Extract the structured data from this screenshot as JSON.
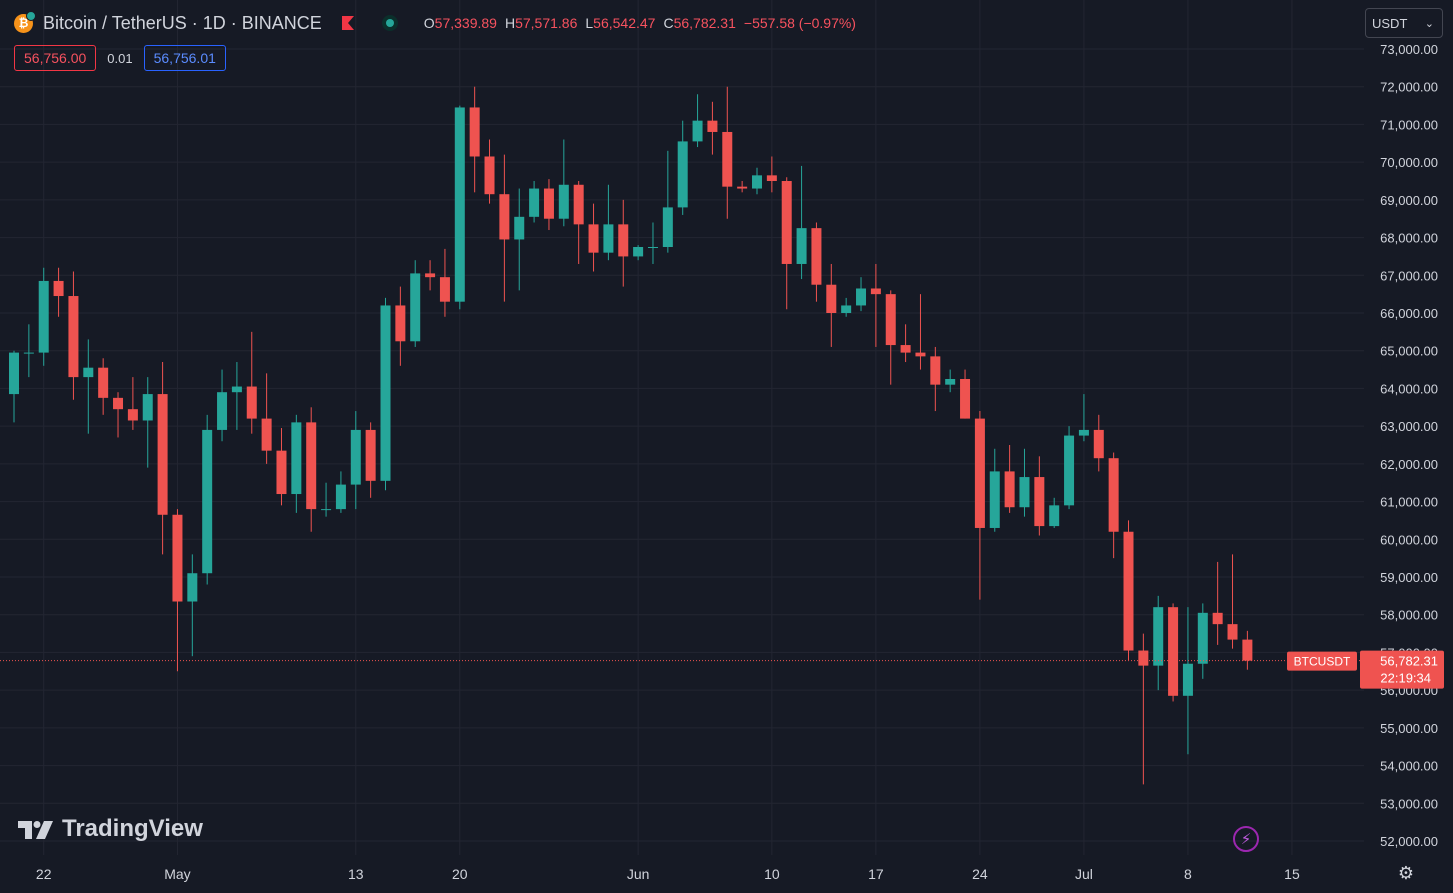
{
  "header": {
    "coin_glyph": "₿",
    "symbol": "Bitcoin / TetherUS · 1D · BINANCE",
    "open_key": "O",
    "open": "57,339.89",
    "high_key": "H",
    "high": "57,571.86",
    "low_key": "L",
    "low": "56,542.47",
    "close_key": "C",
    "close": "56,782.31",
    "change": "−557.58 (−0.97%)",
    "sell_price": "56,756.00",
    "spread": "0.01",
    "buy_price": "56,756.01"
  },
  "currency": {
    "label": "USDT",
    "chevron": "⌄"
  },
  "price_tag": {
    "ticker": "BTCUSDT",
    "price": "56,782.31",
    "countdown": "22:19:34"
  },
  "logo": {
    "text": "TradingView"
  },
  "icons": {
    "flag": "flag-icon",
    "status": "live-dot-icon",
    "bolt": "⚡",
    "gear": "⚙"
  },
  "colors": {
    "up": "#26a69a",
    "down": "#ef5350",
    "background": "#161a25",
    "grid": "#232632",
    "text": "#d1d4dc"
  },
  "chart_data": {
    "type": "candlestick",
    "ylim": [
      51600,
      73400
    ],
    "y_ticks": [
      52000,
      53000,
      54000,
      55000,
      56000,
      57000,
      58000,
      59000,
      60000,
      61000,
      62000,
      63000,
      64000,
      65000,
      66000,
      67000,
      68000,
      69000,
      70000,
      71000,
      72000,
      73000
    ],
    "y_tick_labels": [
      "52,000.00",
      "53,000.00",
      "54,000.00",
      "55,000.00",
      "56,000.00",
      "57,000.00",
      "58,000.00",
      "59,000.00",
      "60,000.00",
      "61,000.00",
      "62,000.00",
      "63,000.00",
      "64,000.00",
      "65,000.00",
      "66,000.00",
      "67,000.00",
      "68,000.00",
      "69,000.00",
      "70,000.00",
      "71,000.00",
      "72,000.00",
      "73,000.00"
    ],
    "x_tick_labels": [
      {
        "date": "2024-04-22",
        "label": "22"
      },
      {
        "date": "2024-05-01",
        "label": "May"
      },
      {
        "date": "2024-05-13",
        "label": "13"
      },
      {
        "date": "2024-05-20",
        "label": "20"
      },
      {
        "date": "2024-06-01",
        "label": "Jun"
      },
      {
        "date": "2024-06-10",
        "label": "10"
      },
      {
        "date": "2024-06-17",
        "label": "17"
      },
      {
        "date": "2024-06-24",
        "label": "24"
      },
      {
        "date": "2024-07-01",
        "label": "Jul"
      },
      {
        "date": "2024-07-08",
        "label": "8"
      },
      {
        "date": "2024-07-15",
        "label": "15"
      }
    ],
    "last_price": 56782.31,
    "candles": [
      {
        "date": "2024-04-20",
        "o": 63850,
        "h": 65000,
        "l": 63100,
        "c": 64950
      },
      {
        "date": "2024-04-21",
        "o": 64950,
        "h": 65700,
        "l": 64300,
        "c": 64950
      },
      {
        "date": "2024-04-22",
        "o": 64950,
        "h": 67200,
        "l": 64600,
        "c": 66850
      },
      {
        "date": "2024-04-23",
        "o": 66850,
        "h": 67200,
        "l": 65900,
        "c": 66450
      },
      {
        "date": "2024-04-24",
        "o": 66450,
        "h": 67100,
        "l": 63700,
        "c": 64300
      },
      {
        "date": "2024-04-25",
        "o": 64300,
        "h": 65300,
        "l": 62800,
        "c": 64550
      },
      {
        "date": "2024-04-26",
        "o": 64550,
        "h": 64800,
        "l": 63300,
        "c": 63750
      },
      {
        "date": "2024-04-27",
        "o": 63750,
        "h": 63900,
        "l": 62700,
        "c": 63450
      },
      {
        "date": "2024-04-28",
        "o": 63450,
        "h": 64300,
        "l": 62900,
        "c": 63150
      },
      {
        "date": "2024-04-29",
        "o": 63150,
        "h": 64300,
        "l": 61900,
        "c": 63850
      },
      {
        "date": "2024-04-30",
        "o": 63850,
        "h": 64700,
        "l": 59600,
        "c": 60650
      },
      {
        "date": "2024-05-01",
        "o": 60650,
        "h": 60800,
        "l": 56500,
        "c": 58350
      },
      {
        "date": "2024-05-02",
        "o": 58350,
        "h": 59600,
        "l": 56900,
        "c": 59100
      },
      {
        "date": "2024-05-03",
        "o": 59100,
        "h": 63300,
        "l": 58800,
        "c": 62900
      },
      {
        "date": "2024-05-04",
        "o": 62900,
        "h": 64500,
        "l": 62600,
        "c": 63900
      },
      {
        "date": "2024-05-05",
        "o": 63900,
        "h": 64700,
        "l": 62900,
        "c": 64050
      },
      {
        "date": "2024-05-06",
        "o": 64050,
        "h": 65500,
        "l": 62800,
        "c": 63200
      },
      {
        "date": "2024-05-07",
        "o": 63200,
        "h": 64400,
        "l": 62000,
        "c": 62350
      },
      {
        "date": "2024-05-08",
        "o": 62350,
        "h": 62950,
        "l": 60900,
        "c": 61200
      },
      {
        "date": "2024-05-09",
        "o": 61200,
        "h": 63300,
        "l": 60700,
        "c": 63100
      },
      {
        "date": "2024-05-10",
        "o": 63100,
        "h": 63500,
        "l": 60200,
        "c": 60800
      },
      {
        "date": "2024-05-11",
        "o": 60800,
        "h": 61500,
        "l": 60600,
        "c": 60800
      },
      {
        "date": "2024-05-12",
        "o": 60800,
        "h": 61800,
        "l": 60700,
        "c": 61450
      },
      {
        "date": "2024-05-13",
        "o": 61450,
        "h": 63400,
        "l": 60800,
        "c": 62900
      },
      {
        "date": "2024-05-14",
        "o": 62900,
        "h": 63100,
        "l": 61100,
        "c": 61550
      },
      {
        "date": "2024-05-15",
        "o": 61550,
        "h": 66400,
        "l": 61300,
        "c": 66200
      },
      {
        "date": "2024-05-16",
        "o": 66200,
        "h": 66700,
        "l": 64600,
        "c": 65250
      },
      {
        "date": "2024-05-17",
        "o": 65250,
        "h": 67400,
        "l": 65100,
        "c": 67050
      },
      {
        "date": "2024-05-18",
        "o": 67050,
        "h": 67400,
        "l": 66600,
        "c": 66950
      },
      {
        "date": "2024-05-19",
        "o": 66950,
        "h": 67700,
        "l": 65900,
        "c": 66300
      },
      {
        "date": "2024-05-20",
        "o": 66300,
        "h": 71500,
        "l": 66100,
        "c": 71450
      },
      {
        "date": "2024-05-21",
        "o": 71450,
        "h": 72000,
        "l": 69200,
        "c": 70150
      },
      {
        "date": "2024-05-22",
        "o": 70150,
        "h": 70600,
        "l": 68900,
        "c": 69150
      },
      {
        "date": "2024-05-23",
        "o": 69150,
        "h": 70200,
        "l": 66300,
        "c": 67950
      },
      {
        "date": "2024-05-24",
        "o": 67950,
        "h": 69300,
        "l": 66600,
        "c": 68550
      },
      {
        "date": "2024-05-25",
        "o": 68550,
        "h": 69500,
        "l": 68400,
        "c": 69300
      },
      {
        "date": "2024-05-26",
        "o": 69300,
        "h": 69550,
        "l": 68200,
        "c": 68500
      },
      {
        "date": "2024-05-27",
        "o": 68500,
        "h": 70600,
        "l": 68300,
        "c": 69400
      },
      {
        "date": "2024-05-28",
        "o": 69400,
        "h": 69500,
        "l": 67300,
        "c": 68350
      },
      {
        "date": "2024-05-29",
        "o": 68350,
        "h": 68900,
        "l": 67100,
        "c": 67600
      },
      {
        "date": "2024-05-30",
        "o": 67600,
        "h": 69400,
        "l": 67400,
        "c": 68350
      },
      {
        "date": "2024-05-31",
        "o": 68350,
        "h": 69000,
        "l": 66700,
        "c": 67500
      },
      {
        "date": "2024-06-01",
        "o": 67500,
        "h": 67800,
        "l": 67400,
        "c": 67750
      },
      {
        "date": "2024-06-02",
        "o": 67750,
        "h": 68400,
        "l": 67300,
        "c": 67750
      },
      {
        "date": "2024-06-03",
        "o": 67750,
        "h": 70300,
        "l": 67600,
        "c": 68800
      },
      {
        "date": "2024-06-04",
        "o": 68800,
        "h": 71100,
        "l": 68600,
        "c": 70550
      },
      {
        "date": "2024-06-05",
        "o": 70550,
        "h": 71800,
        "l": 70400,
        "c": 71100
      },
      {
        "date": "2024-06-06",
        "o": 71100,
        "h": 71600,
        "l": 70200,
        "c": 70800
      },
      {
        "date": "2024-06-07",
        "o": 70800,
        "h": 72000,
        "l": 68500,
        "c": 69350
      },
      {
        "date": "2024-06-08",
        "o": 69350,
        "h": 69500,
        "l": 69200,
        "c": 69300
      },
      {
        "date": "2024-06-09",
        "o": 69300,
        "h": 69850,
        "l": 69150,
        "c": 69650
      },
      {
        "date": "2024-06-10",
        "o": 69650,
        "h": 70150,
        "l": 69200,
        "c": 69500
      },
      {
        "date": "2024-06-11",
        "o": 69500,
        "h": 69600,
        "l": 66100,
        "c": 67300
      },
      {
        "date": "2024-06-12",
        "o": 67300,
        "h": 69900,
        "l": 66900,
        "c": 68250
      },
      {
        "date": "2024-06-13",
        "o": 68250,
        "h": 68400,
        "l": 66300,
        "c": 66750
      },
      {
        "date": "2024-06-14",
        "o": 66750,
        "h": 67300,
        "l": 65100,
        "c": 66000
      },
      {
        "date": "2024-06-15",
        "o": 66000,
        "h": 66400,
        "l": 65900,
        "c": 66200
      },
      {
        "date": "2024-06-16",
        "o": 66200,
        "h": 66950,
        "l": 66050,
        "c": 66650
      },
      {
        "date": "2024-06-17",
        "o": 66650,
        "h": 67300,
        "l": 65100,
        "c": 66500
      },
      {
        "date": "2024-06-18",
        "o": 66500,
        "h": 66600,
        "l": 64100,
        "c": 65150
      },
      {
        "date": "2024-06-19",
        "o": 65150,
        "h": 65700,
        "l": 64700,
        "c": 64950
      },
      {
        "date": "2024-06-20",
        "o": 64950,
        "h": 66500,
        "l": 64500,
        "c": 64850
      },
      {
        "date": "2024-06-21",
        "o": 64850,
        "h": 65100,
        "l": 63400,
        "c": 64100
      },
      {
        "date": "2024-06-22",
        "o": 64100,
        "h": 64500,
        "l": 63900,
        "c": 64250
      },
      {
        "date": "2024-06-23",
        "o": 64250,
        "h": 64500,
        "l": 63200,
        "c": 63200
      },
      {
        "date": "2024-06-24",
        "o": 63200,
        "h": 63400,
        "l": 58400,
        "c": 60300
      },
      {
        "date": "2024-06-25",
        "o": 60300,
        "h": 62400,
        "l": 60200,
        "c": 61800
      },
      {
        "date": "2024-06-26",
        "o": 61800,
        "h": 62500,
        "l": 60700,
        "c": 60850
      },
      {
        "date": "2024-06-27",
        "o": 60850,
        "h": 62400,
        "l": 60600,
        "c": 61650
      },
      {
        "date": "2024-06-28",
        "o": 61650,
        "h": 62200,
        "l": 60100,
        "c": 60350
      },
      {
        "date": "2024-06-29",
        "o": 60350,
        "h": 61100,
        "l": 60300,
        "c": 60900
      },
      {
        "date": "2024-06-30",
        "o": 60900,
        "h": 63000,
        "l": 60800,
        "c": 62750
      },
      {
        "date": "2024-07-01",
        "o": 62750,
        "h": 63850,
        "l": 62600,
        "c": 62900
      },
      {
        "date": "2024-07-02",
        "o": 62900,
        "h": 63300,
        "l": 61800,
        "c": 62150
      },
      {
        "date": "2024-07-03",
        "o": 62150,
        "h": 62300,
        "l": 59500,
        "c": 60200
      },
      {
        "date": "2024-07-04",
        "o": 60200,
        "h": 60500,
        "l": 56800,
        "c": 57050
      },
      {
        "date": "2024-07-05",
        "o": 57050,
        "h": 57500,
        "l": 53500,
        "c": 56650
      },
      {
        "date": "2024-07-06",
        "o": 56650,
        "h": 58500,
        "l": 56000,
        "c": 58200
      },
      {
        "date": "2024-07-07",
        "o": 58200,
        "h": 58300,
        "l": 55700,
        "c": 55850
      },
      {
        "date": "2024-07-08",
        "o": 55850,
        "h": 58200,
        "l": 54300,
        "c": 56700
      },
      {
        "date": "2024-07-09",
        "o": 56700,
        "h": 58300,
        "l": 56300,
        "c": 58050
      },
      {
        "date": "2024-07-10",
        "o": 58050,
        "h": 59400,
        "l": 57200,
        "c": 57750
      },
      {
        "date": "2024-07-11",
        "o": 57750,
        "h": 59600,
        "l": 57100,
        "c": 57340
      },
      {
        "date": "2024-07-12",
        "o": 57340,
        "h": 57572,
        "l": 56542,
        "c": 56782
      }
    ]
  }
}
